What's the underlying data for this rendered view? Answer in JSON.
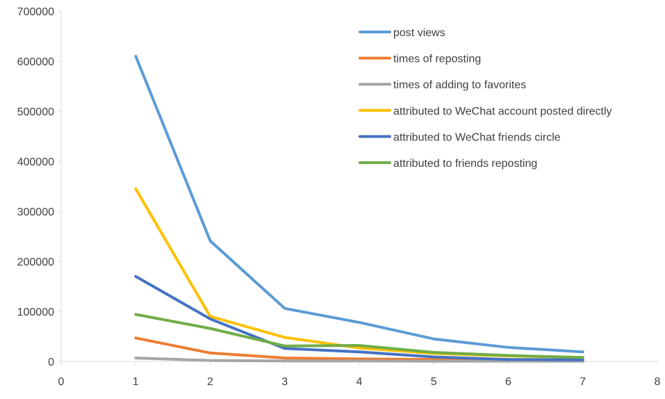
{
  "chart_data": {
    "type": "line",
    "title": "",
    "xlabel": "",
    "ylabel": "",
    "xlim": [
      0,
      8
    ],
    "ylim": [
      0,
      700000
    ],
    "x_ticks": [
      "0",
      "1",
      "2",
      "3",
      "4",
      "5",
      "6",
      "7",
      "8"
    ],
    "y_ticks": [
      "0",
      "100000",
      "200000",
      "300000",
      "400000",
      "500000",
      "600000",
      "700000"
    ],
    "grid": false,
    "legend_position": "top-right",
    "x": [
      1,
      2,
      3,
      4,
      5,
      6,
      7
    ],
    "series": [
      {
        "name": "post views",
        "color": "#5B9BD5",
        "values": [
          610000,
          241000,
          106000,
          78000,
          45000,
          28000,
          19000
        ]
      },
      {
        "name": "times of reposting",
        "color": "#ED7D31",
        "values": [
          47000,
          17000,
          7000,
          5000,
          4000,
          3000,
          2500
        ]
      },
      {
        "name": "times of adding to favorites",
        "color": "#A5A5A5",
        "values": [
          7000,
          2000,
          1000,
          1000,
          500,
          500,
          500
        ]
      },
      {
        "name": "attributed to WeChat account posted directly",
        "color": "#FFC000",
        "values": [
          345000,
          90000,
          48000,
          27000,
          16000,
          11000,
          8000
        ]
      },
      {
        "name": "attributed to WeChat friends circle",
        "color": "#4472C4",
        "values": [
          170000,
          85000,
          26000,
          19000,
          9000,
          4000,
          3000
        ]
      },
      {
        "name": "attributed to friends reposting",
        "color": "#70AD47",
        "values": [
          94000,
          66000,
          31000,
          32000,
          18000,
          12000,
          8000
        ]
      }
    ]
  }
}
